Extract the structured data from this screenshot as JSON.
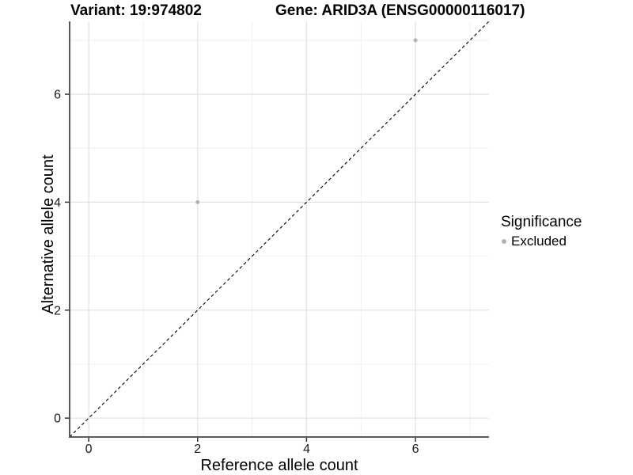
{
  "chart_data": {
    "type": "scatter",
    "title_left": "Variant: 19:974802",
    "title_right": "Gene: ARID3A (ENSG00000116017)",
    "xlabel": "Reference allele count",
    "ylabel": "Alternative allele count",
    "xlim": [
      -0.35,
      7.35
    ],
    "ylim": [
      -0.35,
      7.35
    ],
    "xticks": [
      0,
      2,
      4,
      6
    ],
    "yticks": [
      0,
      2,
      4,
      6
    ],
    "x_minor_gridlines": [
      1,
      3,
      5,
      7
    ],
    "y_minor_gridlines": [
      1,
      3,
      5,
      7
    ],
    "grid": "on",
    "points": [
      {
        "x": 2,
        "y": 4,
        "significance": "Excluded"
      },
      {
        "x": 6,
        "y": 7,
        "significance": "Excluded"
      }
    ],
    "identity_line": {
      "desc": "y = x",
      "style": "dashed",
      "color": "#000000"
    },
    "legend": {
      "title": "Significance",
      "position": "right",
      "items": [
        {
          "label": "Excluded",
          "color": "#b3b3b3"
        }
      ]
    }
  },
  "colors": {
    "background": "#ffffff",
    "grid_major": "#e3e3e3",
    "grid_minor": "#eeeeee",
    "axis_line": "#464646",
    "tick_mark": "#333333",
    "tick_label": "#1a1a1a",
    "title_text": "#000000",
    "point": "#b3b3b3",
    "dashed_line": "#000000"
  }
}
